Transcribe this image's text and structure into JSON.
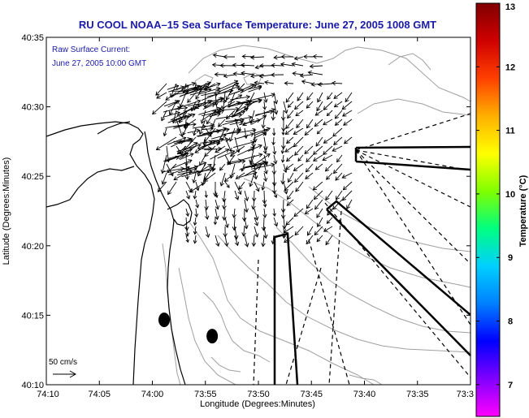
{
  "chart_data": {
    "type": "vector-field-map",
    "title": "RU COOL  NOAA–15  Sea Surface Temperature:  June 27, 2005 1008 GMT",
    "xlabel": "Longitude (Degrees:Minutes)",
    "ylabel": "Latitude (Degrees:Minutes)",
    "x_tick_labels": [
      "74:10",
      "74:05",
      "74:00",
      "73:55",
      "73:50",
      "73:45",
      "73:40",
      "73:35",
      "73:3"
    ],
    "y_tick_labels": [
      "40:35",
      "40:30",
      "40:25",
      "40:20",
      "40:15",
      "40:10"
    ],
    "xlim": [
      -74.1667,
      -73.5
    ],
    "ylim": [
      40.1667,
      40.5833
    ],
    "annotations": [
      "Raw Surface Current:",
      "June 27, 2005 10:00 GMT"
    ],
    "scale_arrow_label": "50 cm/s",
    "colorbar": {
      "label": "Temperature (°C)",
      "ticks": [
        "13",
        "12",
        "11",
        "10",
        "9",
        "8",
        "7"
      ],
      "min": 6.5,
      "max": 13,
      "colors": [
        "#ff00ff",
        "#8000ff",
        "#0000ff",
        "#0080ff",
        "#00d0ff",
        "#00ff80",
        "#80ff00",
        "#ffff00",
        "#ffb000",
        "#ff4000",
        "#d00000",
        "#800000"
      ]
    },
    "buoys": [
      {
        "lon": -73.9815,
        "lat": 40.2445
      },
      {
        "lon": -73.906,
        "lat": 40.225
      }
    ]
  }
}
